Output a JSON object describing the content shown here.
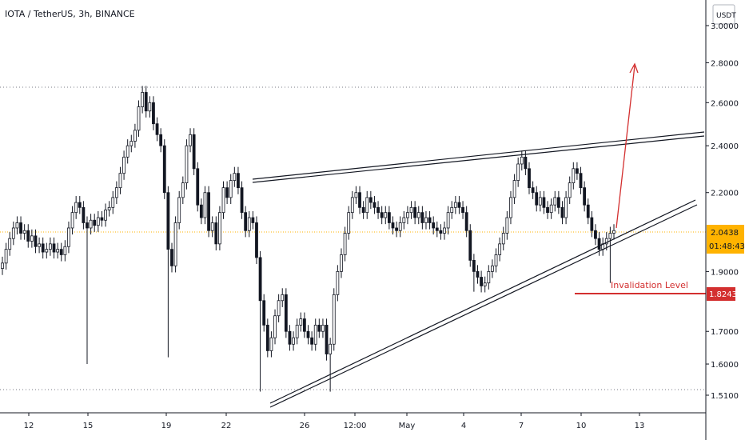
{
  "header": {
    "title": "IOTA / TetherUS, 3h, BINANCE"
  },
  "price_scale": {
    "currency": "USDT",
    "ticks": [
      "3.0000",
      "2.8000",
      "2.6000",
      "2.4000",
      "2.2000",
      "1.9000",
      "1.7000",
      "1.6000",
      "1.5100"
    ],
    "min": 1.47,
    "max": 3.05,
    "log": true
  },
  "time_axis": {
    "labels": [
      "12",
      "15",
      "19",
      "22",
      "26",
      "12:00",
      "May",
      "4",
      "7",
      "10",
      "13"
    ]
  },
  "last_price": {
    "value": 2.0438,
    "label": "2.0438",
    "countdown": "01:48:43",
    "color": "#ffb300"
  },
  "invalidation": {
    "value": 1.8243,
    "label": "1.8243",
    "text": "Invalidation Level",
    "color": "#d32f2f"
  },
  "colors": {
    "candle": "#131722",
    "arrow": "#d32f2f",
    "hline": "#787b86",
    "pricetag_bg": "#ffb300"
  },
  "chart_data": {
    "type": "candlestick",
    "title": "IOTA / TetherUS, 3h, BINANCE",
    "ylim": [
      1.47,
      3.05
    ],
    "y_scale": "log",
    "x_ticks": [
      "12",
      "15",
      "19",
      "22",
      "26",
      "12:00",
      "May",
      "4",
      "7",
      "10",
      "13"
    ],
    "y_ticks": [
      3.0,
      2.8,
      2.6,
      2.4,
      2.2,
      1.9,
      1.7,
      1.6,
      1.51
    ],
    "closes": [
      1.93,
      1.98,
      2.02,
      2.06,
      2.08,
      2.04,
      2.05,
      2.01,
      2.03,
      1.99,
      2.0,
      1.97,
      1.98,
      2.0,
      1.97,
      1.98,
      1.96,
      1.99,
      2.06,
      2.12,
      2.16,
      2.14,
      2.08,
      2.06,
      2.09,
      2.07,
      2.1,
      2.09,
      2.13,
      2.14,
      2.18,
      2.22,
      2.28,
      2.35,
      2.4,
      2.42,
      2.47,
      2.58,
      2.65,
      2.56,
      2.6,
      2.5,
      2.45,
      2.4,
      2.2,
      1.98,
      1.92,
      2.08,
      2.18,
      2.24,
      2.4,
      2.45,
      2.3,
      2.15,
      2.1,
      2.2,
      2.05,
      2.08,
      2.0,
      2.12,
      2.22,
      2.18,
      2.25,
      2.28,
      2.22,
      2.12,
      2.05,
      2.1,
      2.08,
      1.95,
      1.8,
      1.72,
      1.64,
      1.68,
      1.75,
      1.8,
      1.82,
      1.7,
      1.66,
      1.68,
      1.72,
      1.74,
      1.7,
      1.68,
      1.66,
      1.72,
      1.7,
      1.72,
      1.63,
      1.66,
      1.82,
      1.9,
      1.96,
      2.04,
      2.12,
      2.18,
      2.2,
      2.14,
      2.12,
      2.18,
      2.16,
      2.14,
      2.12,
      2.1,
      2.12,
      2.08,
      2.06,
      2.05,
      2.08,
      2.1,
      2.12,
      2.14,
      2.1,
      2.12,
      2.08,
      2.1,
      2.08,
      2.06,
      2.05,
      2.04,
      2.06,
      2.12,
      2.14,
      2.16,
      2.14,
      2.12,
      2.05,
      1.94,
      1.9,
      1.88,
      1.85,
      1.86,
      1.9,
      1.92,
      1.96,
      2.0,
      2.04,
      2.1,
      2.18,
      2.25,
      2.32,
      2.35,
      2.3,
      2.22,
      2.2,
      2.15,
      2.18,
      2.14,
      2.12,
      2.15,
      2.18,
      2.14,
      2.1,
      2.18,
      2.24,
      2.3,
      2.28,
      2.22,
      2.15,
      2.1,
      2.05,
      2.02,
      1.98,
      2.0,
      2.02,
      2.04,
      2.05
    ],
    "trendlines": [
      {
        "name": "upper",
        "from": [
          0,
          2.25
        ],
        "to": [
          1,
          2.46
        ]
      },
      {
        "name": "lower",
        "from": [
          0,
          1.5
        ],
        "to": [
          1,
          2.17
        ]
      }
    ],
    "annotations": [
      "Invalidation Level"
    ]
  }
}
